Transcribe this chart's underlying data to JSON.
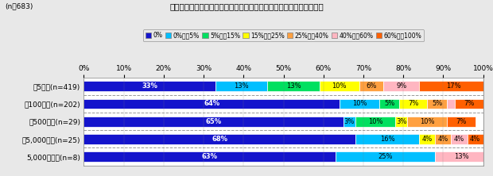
{
  "title": "消費者向け無担保貸付－直近月末時点の新規貸付先－貸付残高規模別",
  "n_total": "(n＝683)",
  "categories": [
    "～5億円(n=419)",
    "～100億円(n=202)",
    "～500億円(n=29)",
    "～5,000億円(n=25)",
    "5,000億円超(n=8)"
  ],
  "legend_labels": [
    "0%",
    "0%超～5%",
    "5%超～15%",
    "15%超～25%",
    "25%超～40%",
    "40%超～60%",
    "60%超～100%"
  ],
  "colors": [
    "#1414CC",
    "#00BFFF",
    "#00E060",
    "#FFFF00",
    "#FFA040",
    "#FFB6C1",
    "#FF6000"
  ],
  "data": [
    [
      33,
      13,
      13,
      10,
      6,
      9,
      17
    ],
    [
      64,
      10,
      5,
      7,
      5,
      2,
      7
    ],
    [
      65,
      3,
      10,
      3,
      10,
      0,
      7
    ],
    [
      68,
      16,
      0,
      4,
      4,
      4,
      4
    ],
    [
      63,
      25,
      0,
      0,
      0,
      13,
      0
    ]
  ],
  "label_colors": [
    [
      "white",
      "black",
      "black",
      "black",
      "black",
      "black",
      "black"
    ],
    [
      "white",
      "black",
      "black",
      "black",
      "black",
      "black",
      "black"
    ],
    [
      "white",
      "black",
      "black",
      "black",
      "black",
      "black",
      "black"
    ],
    [
      "white",
      "black",
      "black",
      "black",
      "black",
      "black",
      "black"
    ],
    [
      "white",
      "black",
      "black",
      "black",
      "black",
      "black",
      "black"
    ]
  ],
  "xlim": [
    0,
    100
  ],
  "xlabel_ticks": [
    0,
    10,
    20,
    30,
    40,
    50,
    60,
    70,
    80,
    90,
    100
  ],
  "xlabel_labels": [
    "0%",
    "10%",
    "20%",
    "30%",
    "40%",
    "50%",
    "60%",
    "70%",
    "80%",
    "90%",
    "100%"
  ],
  "background_color": "#E8E8E8",
  "bar_height": 0.58
}
